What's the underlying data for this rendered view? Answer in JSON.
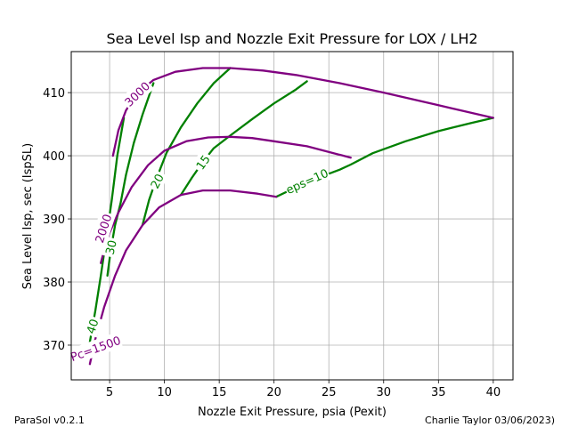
{
  "chart_data": {
    "type": "line",
    "title": "Sea Level Isp and Nozzle Exit Pressure for LOX / LH2",
    "xlabel": "Nozzle Exit Pressure, psia (Pexit)",
    "ylabel": "Sea Level Isp, sec (IspSL)",
    "xlim": [
      1.5,
      41.8
    ],
    "ylim": [
      364.5,
      416.5
    ],
    "xticks": [
      5,
      10,
      15,
      20,
      25,
      30,
      35,
      40
    ],
    "yticks": [
      370,
      380,
      390,
      400,
      410
    ],
    "grid": true,
    "colors": {
      "pc": "#800080",
      "eps": "#008000"
    },
    "pc_series": [
      {
        "name": "Pc=1500",
        "points": [
          [
            3.2,
            367.0
          ],
          [
            3.7,
            371.0
          ],
          [
            4.5,
            376.0
          ],
          [
            5.5,
            381.0
          ],
          [
            6.5,
            385.0
          ],
          [
            8.0,
            389.0
          ],
          [
            9.5,
            391.8
          ],
          [
            11.5,
            393.8
          ],
          [
            13.5,
            394.5
          ],
          [
            16.0,
            394.5
          ],
          [
            18.5,
            394.0
          ],
          [
            20.2,
            393.5
          ]
        ]
      },
      {
        "name": "Pc=2000",
        "points": [
          [
            4.2,
            383.0
          ],
          [
            4.8,
            387.0
          ],
          [
            5.8,
            391.0
          ],
          [
            7.0,
            395.0
          ],
          [
            8.5,
            398.5
          ],
          [
            10.0,
            400.8
          ],
          [
            12.0,
            402.3
          ],
          [
            14.0,
            402.9
          ],
          [
            16.0,
            403.0
          ],
          [
            18.0,
            402.8
          ],
          [
            20.0,
            402.3
          ],
          [
            23.0,
            401.5
          ],
          [
            27.0,
            399.7
          ]
        ]
      },
      {
        "name": "Pc=3000",
        "points": [
          [
            5.3,
            400.0
          ],
          [
            5.8,
            404.0
          ],
          [
            6.5,
            407.2
          ],
          [
            7.5,
            409.8
          ],
          [
            9.0,
            412.0
          ],
          [
            11.0,
            413.3
          ],
          [
            13.5,
            413.9
          ],
          [
            16.0,
            413.9
          ],
          [
            19.0,
            413.5
          ],
          [
            22.0,
            412.8
          ],
          [
            26.0,
            411.5
          ],
          [
            30.0,
            410.0
          ],
          [
            35.0,
            408.0
          ],
          [
            40.0,
            406.0
          ]
        ]
      }
    ],
    "eps_series": [
      {
        "name": "eps=10",
        "points": [
          [
            20.2,
            393.5
          ],
          [
            22.0,
            395.0
          ],
          [
            24.0,
            396.5
          ],
          [
            26.0,
            397.8
          ],
          [
            27.0,
            398.6
          ],
          [
            29.0,
            400.4
          ],
          [
            32.0,
            402.3
          ],
          [
            35.0,
            403.9
          ],
          [
            38.0,
            405.2
          ],
          [
            40.0,
            406.0
          ]
        ]
      },
      {
        "name": "15",
        "points": [
          [
            11.5,
            393.8
          ],
          [
            12.5,
            396.5
          ],
          [
            13.5,
            399.0
          ],
          [
            14.5,
            401.2
          ],
          [
            16.0,
            403.2
          ],
          [
            18.0,
            405.8
          ],
          [
            20.0,
            408.3
          ],
          [
            22.0,
            410.5
          ],
          [
            23.0,
            411.8
          ]
        ]
      },
      {
        "name": "20",
        "points": [
          [
            8.0,
            389.0
          ],
          [
            8.6,
            393.0
          ],
          [
            9.3,
            396.5
          ],
          [
            10.2,
            400.5
          ],
          [
            11.5,
            404.5
          ],
          [
            13.0,
            408.3
          ],
          [
            14.5,
            411.5
          ],
          [
            16.0,
            413.9
          ]
        ]
      },
      {
        "name": "30",
        "points": [
          [
            4.8,
            381.0
          ],
          [
            5.1,
            385.0
          ],
          [
            5.5,
            389.0
          ],
          [
            6.0,
            392.5
          ],
          [
            6.5,
            397.0
          ],
          [
            7.2,
            402.0
          ],
          [
            8.0,
            406.5
          ],
          [
            9.0,
            411.5
          ]
        ]
      },
      {
        "name": "40",
        "points": [
          [
            3.2,
            370.5
          ],
          [
            3.7,
            375.5
          ],
          [
            4.2,
            381.0
          ],
          [
            4.7,
            387.0
          ],
          [
            5.2,
            393.0
          ],
          [
            5.7,
            400.0
          ],
          [
            6.3,
            406.0
          ]
        ]
      }
    ],
    "contour_labels": [
      {
        "text": "Pc=1500",
        "x": 3.7,
        "y": 369.5,
        "angle": -20,
        "series": "pc"
      },
      {
        "text": "2000",
        "x": 4.4,
        "y": 388.5,
        "angle": -72,
        "series": "pc"
      },
      {
        "text": "3000",
        "x": 7.5,
        "y": 409.8,
        "angle": -44,
        "series": "pc"
      },
      {
        "text": "40",
        "x": 3.4,
        "y": 373.0,
        "angle": -72,
        "series": "eps"
      },
      {
        "text": "30",
        "x": 5.1,
        "y": 385.5,
        "angle": -77,
        "series": "eps"
      },
      {
        "text": "20",
        "x": 9.3,
        "y": 396.0,
        "angle": -63,
        "series": "eps"
      },
      {
        "text": "15",
        "x": 13.5,
        "y": 399.0,
        "angle": -55,
        "series": "eps"
      },
      {
        "text": "eps=10",
        "x": 23.0,
        "y": 396.0,
        "angle": -24,
        "series": "eps"
      }
    ]
  },
  "footer": {
    "left": "ParaSol v0.2.1",
    "right": "Charlie Taylor 03/06/2023)"
  }
}
